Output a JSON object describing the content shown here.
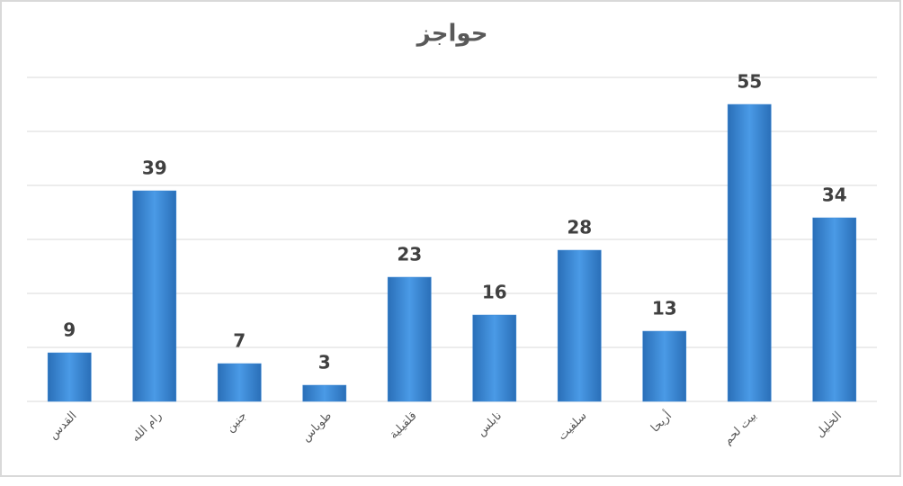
{
  "chart_data": {
    "type": "bar",
    "title": "حواجز",
    "categories": [
      "القدس",
      "رام الله",
      "جنين",
      "طوباس",
      "قلقيلية",
      "نابلس",
      "سلفيت",
      "أريحا",
      "بيت لحم",
      "الخليل"
    ],
    "values": [
      9,
      39,
      7,
      3,
      23,
      16,
      28,
      13,
      55,
      34
    ],
    "color": "#3b87d6",
    "ylim": [
      0,
      60
    ],
    "yticks": [
      0,
      10,
      20,
      30,
      40,
      50,
      60
    ],
    "grid": true
  }
}
